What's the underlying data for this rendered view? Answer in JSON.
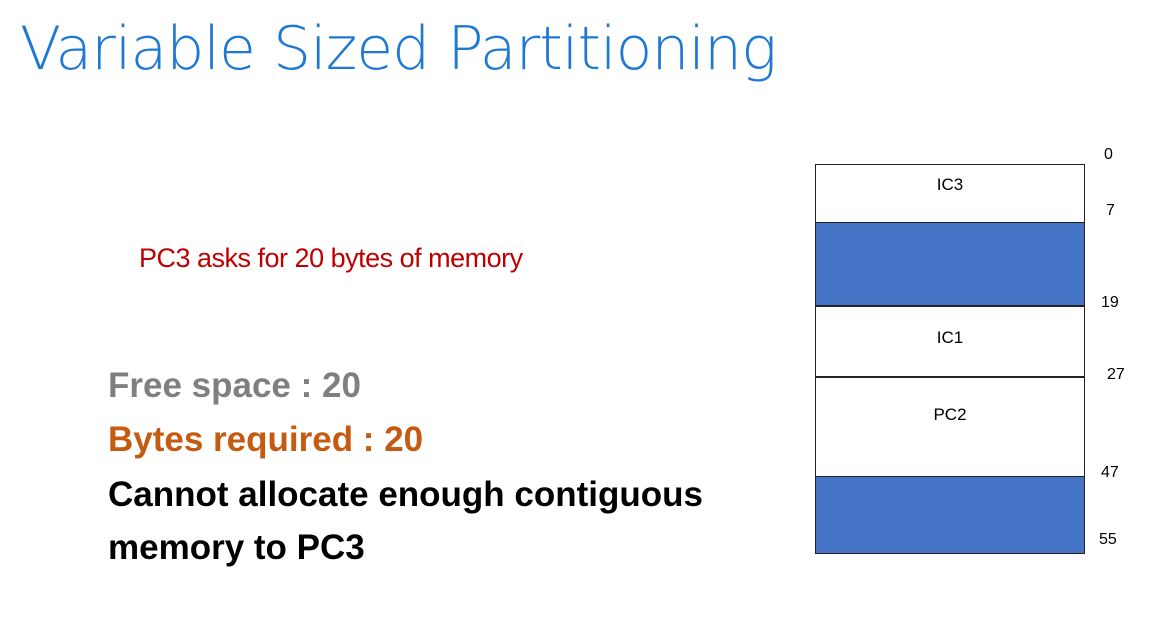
{
  "slide": {
    "title": "Variable Sized Partitioning",
    "request_text": "PC3 asks for 20 bytes of memory",
    "free_space": "Free space : 20",
    "bytes_required": "Bytes required : 20",
    "conclusion_line1": "Cannot allocate enough contiguous",
    "conclusion_line2": "memory to PC3"
  },
  "colors": {
    "title": "#1f78d1",
    "request": "#c00000",
    "free_space": "#7f7f7f",
    "bytes_required": "#c55a11",
    "free_block": "#4472c4"
  },
  "memory": {
    "segments": [
      {
        "label": "IC3",
        "start": 0,
        "end": 7,
        "free": false
      },
      {
        "label": "",
        "start": 7,
        "end": 19,
        "free": true
      },
      {
        "label": "IC1",
        "start": 19,
        "end": 27,
        "free": false
      },
      {
        "label": "PC2",
        "start": 27,
        "end": 47,
        "free": false
      },
      {
        "label": "",
        "start": 47,
        "end": 55,
        "free": true
      }
    ],
    "addresses": [
      "0",
      "7",
      "19",
      "27",
      "47",
      "55"
    ]
  }
}
